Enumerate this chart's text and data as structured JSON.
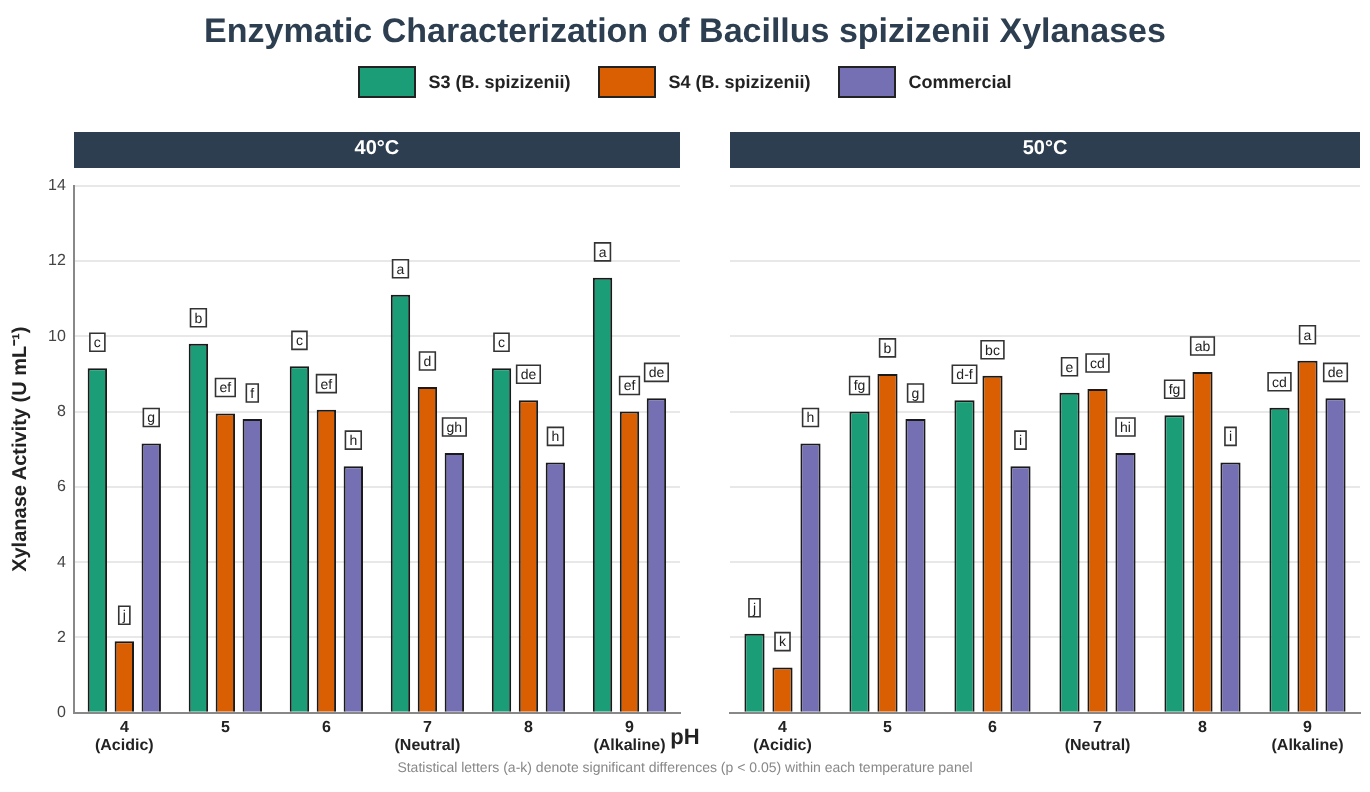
{
  "chart_data": [
    {
      "type": "bar",
      "title": "Enzymatic Characterization of Bacillus spizizenii Xylanases",
      "subtitle": "40°C",
      "xlabel": "pH",
      "ylabel": "Xylanase Activity (U mL⁻¹)",
      "categories": [
        "4\n(Acidic)",
        "5",
        "6",
        "7\n(Neutral)",
        "8",
        "9\n(Alkaline)"
      ],
      "series": [
        {
          "name": "S3 (B. spizizenii)",
          "color": "#1b9e77",
          "values": [
            9.15,
            9.8,
            9.2,
            11.1,
            9.15,
            11.55
          ],
          "value_labels": [
            "c",
            "b",
            "c",
            "a",
            "c",
            "a"
          ]
        },
        {
          "name": "S4 (B. spizizenii)",
          "color": "#d95f02",
          "values": [
            1.9,
            7.95,
            8.05,
            8.65,
            8.3,
            8.0
          ],
          "value_labels": [
            "j",
            "ef",
            "ef",
            "d",
            "de",
            "ef"
          ]
        },
        {
          "name": "Commercial",
          "color": "#7570b3",
          "values": [
            7.15,
            7.8,
            6.55,
            6.9,
            6.65,
            8.35
          ],
          "value_labels": [
            "g",
            "f",
            "h",
            "gh",
            "h",
            "de"
          ]
        }
      ],
      "ylim": [
        0,
        14
      ],
      "yticks": [
        0,
        2,
        4,
        6,
        8,
        10,
        12,
        14
      ],
      "grid": "y",
      "legend": "top",
      "annotations": [
        "Statistical letters (a-k) denote significant differences (p < 0.05) within each temperature panel"
      ]
    },
    {
      "type": "bar",
      "subtitle": "50°C",
      "categories": [
        "4\n(Acidic)",
        "5",
        "6",
        "7\n(Neutral)",
        "8",
        "9\n(Alkaline)"
      ],
      "series": [
        {
          "color": "#1b9e77",
          "values": [
            2.1,
            8.0,
            8.3,
            8.5,
            7.9,
            8.1
          ],
          "value_labels": [
            "j",
            "fg",
            "d-f",
            "e",
            "fg",
            "cd"
          ]
        },
        {
          "color": "#d95f02",
          "values": [
            1.2,
            9.0,
            8.95,
            8.6,
            9.05,
            9.35
          ],
          "value_labels": [
            "k",
            "b",
            "bc",
            "cd",
            "ab",
            "a"
          ]
        },
        {
          "color": "#7570b3",
          "values": [
            7.15,
            7.8,
            6.55,
            6.9,
            6.65,
            8.35
          ],
          "value_labels": [
            "h",
            "g",
            "i",
            "hi",
            "i",
            "de"
          ]
        }
      ],
      "ylim": [
        0,
        14
      ],
      "yticks": [
        0,
        2,
        4,
        6,
        8,
        10,
        12,
        14
      ],
      "grid": "y",
      "tick_labels": "x"
    }
  ]
}
